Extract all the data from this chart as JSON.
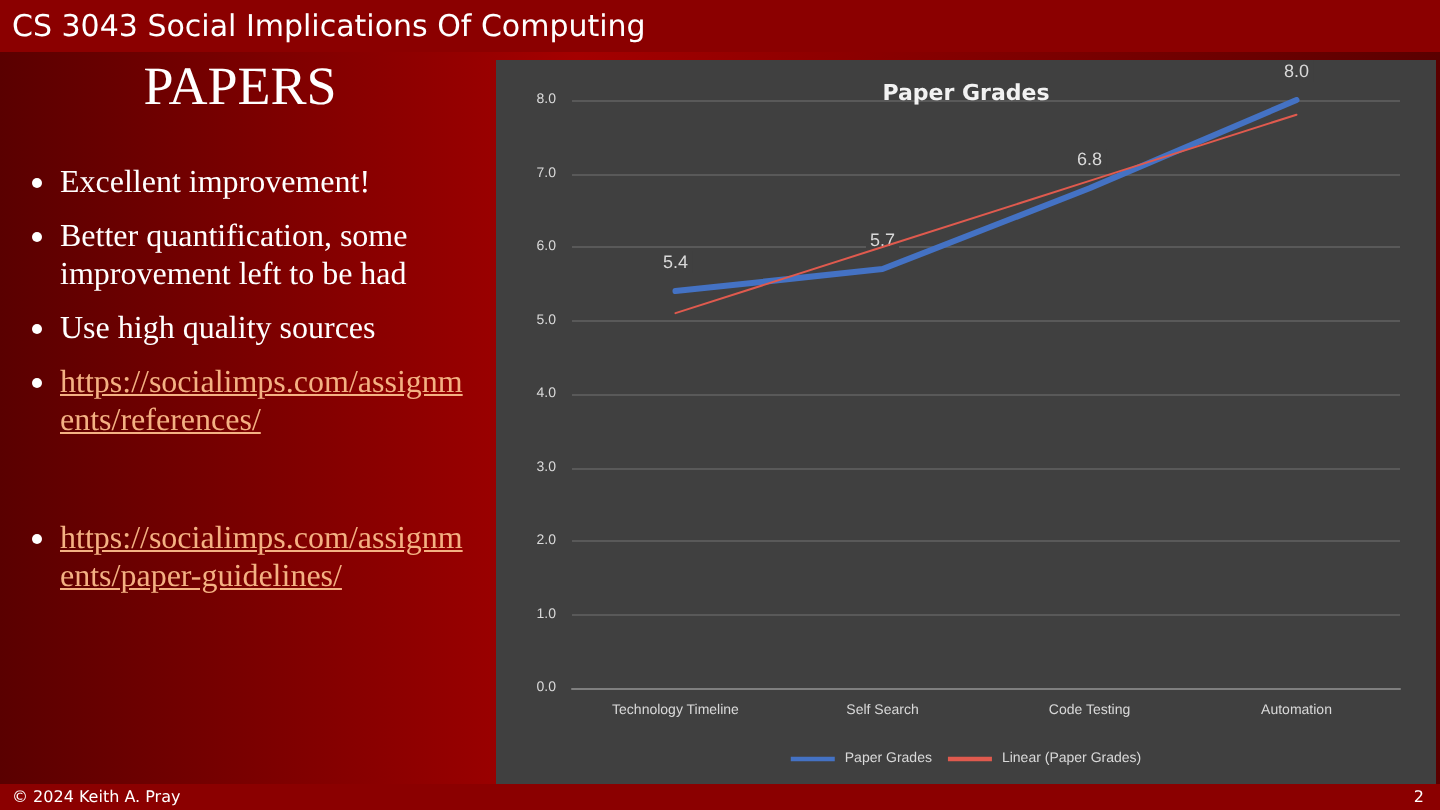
{
  "chart_data": {
    "type": "line",
    "title": "Paper Grades",
    "categories": [
      "Technology Timeline",
      "Self Search",
      "Code Testing",
      "Automation"
    ],
    "series": [
      {
        "name": "Paper Grades",
        "color": "#4472c4",
        "values": [
          5.4,
          5.7,
          6.8,
          8.0
        ],
        "value_labels": [
          "5.4",
          "5.7",
          "6.8",
          "8.0"
        ]
      },
      {
        "name": "Linear (Paper Grades)",
        "color": "#e05a4e",
        "values": [
          5.1,
          6.0,
          6.9,
          7.8
        ],
        "line_style": "solid"
      }
    ],
    "ylim": [
      0,
      8
    ],
    "yticks": [
      {
        "value": 0,
        "label": "0.0"
      },
      {
        "value": 1,
        "label": "1.0"
      },
      {
        "value": 2,
        "label": "2.0"
      },
      {
        "value": 3,
        "label": "3.0"
      },
      {
        "value": 4,
        "label": "4.0"
      },
      {
        "value": 5,
        "label": "5.0"
      },
      {
        "value": 6,
        "label": "6.0"
      },
      {
        "value": 7,
        "label": "7.0"
      },
      {
        "value": 8,
        "label": "8.0"
      }
    ],
    "grid": "y",
    "legend": "bottom",
    "marker": "none",
    "annotations": [
      "CS 3043 Social Implications Of Computing",
      "PAPERS",
      "Excellent improvement!",
      "Better quantification, some improvement left to be had",
      "Use high quality sources",
      "https://socialimps.com/assignments/references/",
      "https://socialimps.com/assignments/paper-guidelines/",
      "© 2024 Keith A. Pray",
      "2"
    ]
  }
}
